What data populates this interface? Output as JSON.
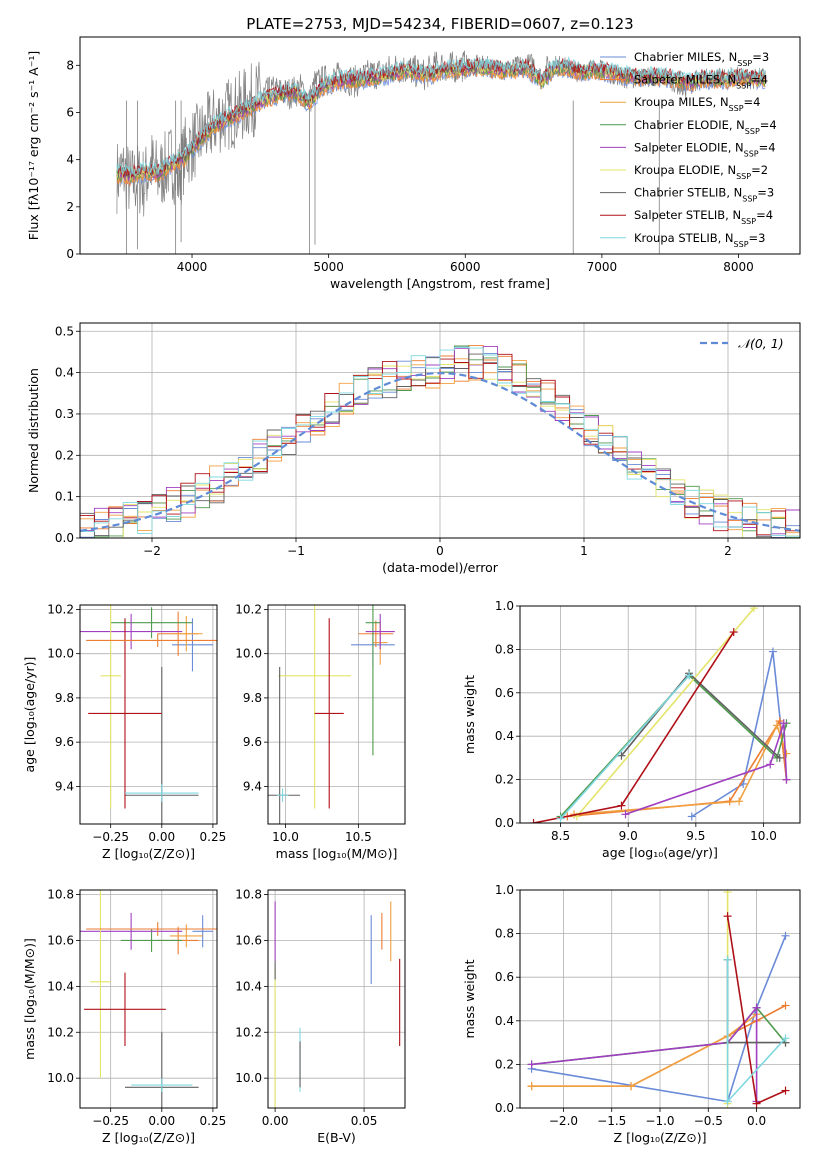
{
  "figure_title": "PLATE=2753, MJD=54234, FIBERID=0607, z=0.123",
  "series_colors": [
    "#6a8bd8",
    "#ee7d32",
    "#f0a040",
    "#4f9a4f",
    "#a040c0",
    "#e4e46a",
    "#606060",
    "#b01018",
    "#7fd8e0"
  ],
  "chart_data": [
    {
      "id": "spectrum",
      "type": "line",
      "title": "PLATE=2753, MJD=54234, FIBERID=0607, z=0.123",
      "xlabel": "wavelength [Angstrom, rest frame]",
      "ylabel": "Flux [fλ10⁻¹⁷ erg cm⁻² s⁻¹ A⁻¹]",
      "xlim": [
        3180,
        8450
      ],
      "ylim": [
        0,
        9.2
      ],
      "xticks": [
        4000,
        5000,
        6000,
        7000,
        8000
      ],
      "yticks": [
        0,
        2,
        4,
        6,
        8
      ],
      "grid": false,
      "legend_position": "right",
      "legend": [
        {
          "label": "Chabrier MILES, N",
          "sub": "SSP",
          "suffix": "=3"
        },
        {
          "label": "Salpeter MILES, N",
          "sub": "SSP",
          "suffix": "=4"
        },
        {
          "label": "Kroupa MILES, N",
          "sub": "SSP",
          "suffix": "=4"
        },
        {
          "label": "Chabrier ELODIE, N",
          "sub": "SSP",
          "suffix": "=4"
        },
        {
          "label": "Salpeter ELODIE, N",
          "sub": "SSP",
          "suffix": "=4"
        },
        {
          "label": "Kroupa ELODIE, N",
          "sub": "SSP",
          "suffix": "=2"
        },
        {
          "label": "Chabrier STELIB, N",
          "sub": "SSP",
          "suffix": "=3"
        },
        {
          "label": "Salpeter STELIB, N",
          "sub": "SSP",
          "suffix": "=4"
        },
        {
          "label": "Kroupa STELIB, N",
          "sub": "SSP",
          "suffix": "=3"
        }
      ],
      "observed_flux": {
        "x": [
          3450,
          3500,
          3550,
          3600,
          3650,
          3700,
          3750,
          3800,
          3850,
          3900,
          3950,
          4000,
          4100,
          4200,
          4300,
          4400,
          4500,
          4600,
          4700,
          4800,
          4861,
          4900,
          5000,
          5100,
          5200,
          5300,
          5400,
          5500,
          5600,
          5700,
          5800,
          5900,
          6000,
          6100,
          6200,
          6300,
          6400,
          6500,
          6563,
          6600,
          6700,
          6800,
          6900,
          7000,
          7100,
          7200,
          7300,
          7400,
          7500,
          7600,
          7700,
          7800,
          7900,
          8000,
          8100,
          8200
        ],
        "y": [
          3.3,
          3.5,
          3.0,
          3.2,
          3.0,
          3.8,
          3.3,
          3.6,
          4.0,
          3.2,
          4.3,
          4.6,
          5.2,
          5.8,
          6.0,
          6.4,
          6.7,
          6.9,
          6.8,
          7.0,
          6.5,
          7.2,
          7.4,
          7.5,
          7.3,
          7.6,
          7.7,
          7.9,
          7.8,
          7.6,
          8.0,
          7.9,
          8.0,
          8.0,
          7.9,
          7.8,
          8.0,
          8.1,
          7.4,
          8.0,
          8.0,
          7.7,
          7.9,
          7.8,
          7.6,
          7.4,
          7.5,
          7.5,
          7.4,
          7.0,
          7.4,
          7.5,
          7.4,
          7.6,
          7.4,
          7.5
        ]
      },
      "model_flux": {
        "x": [
          3450,
          3550,
          3650,
          3750,
          3850,
          3950,
          4050,
          4150,
          4250,
          4350,
          4450,
          4550,
          4650,
          4750,
          4861,
          4950,
          5050,
          5150,
          5250,
          5350,
          5450,
          5550,
          5650,
          5750,
          5850,
          5950,
          6050,
          6150,
          6250,
          6350,
          6450,
          6563,
          6650,
          6750,
          6850,
          6950,
          7050,
          7150,
          7250,
          7350,
          7450,
          7550,
          7650,
          7750,
          7850,
          7950,
          8050,
          8150,
          8200
        ],
        "y": [
          3.4,
          3.3,
          3.5,
          3.4,
          3.8,
          4.1,
          4.8,
          5.4,
          5.7,
          6.0,
          6.3,
          6.6,
          6.8,
          6.9,
          6.4,
          7.1,
          7.3,
          7.4,
          7.4,
          7.5,
          7.6,
          7.8,
          7.7,
          7.6,
          7.8,
          7.8,
          7.9,
          7.9,
          7.8,
          7.8,
          7.9,
          7.3,
          7.9,
          7.9,
          7.7,
          7.8,
          7.7,
          7.6,
          7.5,
          7.5,
          7.5,
          7.4,
          7.3,
          7.4,
          7.4,
          7.4,
          7.5,
          7.4,
          7.4
        ]
      }
    },
    {
      "id": "residuals",
      "type": "histogram",
      "xlabel": "(data-model)/error",
      "ylabel": "Normed distribution",
      "xlim": [
        -2.5,
        2.5
      ],
      "ylim": [
        0,
        0.52
      ],
      "xticks": [
        -2,
        -1,
        0,
        1,
        2
      ],
      "yticks": [
        0.0,
        0.1,
        0.2,
        0.3,
        0.4,
        0.5
      ],
      "grid": true,
      "legend_position": "top-right",
      "reference_label": "𝒩(0, 1)",
      "bin_width": 0.1,
      "bin_start": -2.5,
      "base_density": [
        0.021,
        0.028,
        0.036,
        0.044,
        0.054,
        0.065,
        0.079,
        0.094,
        0.111,
        0.13,
        0.15,
        0.172,
        0.195,
        0.219,
        0.244,
        0.268,
        0.292,
        0.315,
        0.336,
        0.355,
        0.37,
        0.383,
        0.391,
        0.397,
        0.4,
        0.41,
        0.42,
        0.425,
        0.418,
        0.405,
        0.39,
        0.37,
        0.345,
        0.318,
        0.29,
        0.261,
        0.233,
        0.205,
        0.178,
        0.153,
        0.129,
        0.108,
        0.09,
        0.075,
        0.062,
        0.052,
        0.043,
        0.036,
        0.031,
        0.027
      ]
    },
    {
      "id": "age-vs-Z",
      "type": "errorbar",
      "xlabel": "Z [log₁₀(Z/Z⊙)]",
      "ylabel": "age  [log₁₀(age/yr)]",
      "xlim": [
        -0.4,
        0.27
      ],
      "ylim": [
        9.23,
        10.22
      ],
      "xticks": [
        -0.25,
        0.0,
        0.25
      ],
      "yticks": [
        9.4,
        9.6,
        9.8,
        10.0,
        10.2
      ],
      "grid": true,
      "points": [
        {
          "s": 0,
          "x": 0.15,
          "y": 10.04,
          "xe": 0.1,
          "ye": 0.12
        },
        {
          "s": 1,
          "x": 0.08,
          "y": 10.09,
          "xe": 0.1,
          "ye": 0.1
        },
        {
          "s": 2,
          "x": 0.12,
          "y": 10.09,
          "xe": 0.08,
          "ye": 0.08
        },
        {
          "s": 3,
          "x": -0.05,
          "y": 10.14,
          "xe": 0.2,
          "ye": 0.07
        },
        {
          "s": 4,
          "x": -0.15,
          "y": 10.1,
          "xe": 0.25,
          "ye": 0.08
        },
        {
          "s": 5,
          "x": -0.25,
          "y": 9.9,
          "xe": 0.05,
          "ye": 0.6
        },
        {
          "s": 6,
          "x": 0.0,
          "y": 9.36,
          "xe": 0.18,
          "ye": 0.58
        },
        {
          "s": 7,
          "x": -0.18,
          "y": 9.73,
          "xe": 0.18,
          "ye": 0.43
        },
        {
          "s": 8,
          "x": 0.0,
          "y": 9.37,
          "xe": 0.18,
          "ye": 0.04
        },
        {
          "s": 1,
          "x": -0.02,
          "y": 10.06,
          "xe": 0.35,
          "ye": 0.03
        }
      ]
    },
    {
      "id": "age-vs-mass",
      "type": "errorbar",
      "xlabel": "mass [log₁₀(M/M⊙)]",
      "ylabel": "",
      "xlim": [
        9.88,
        10.82
      ],
      "ylim": [
        9.23,
        10.22
      ],
      "xticks": [
        10.0,
        10.5
      ],
      "yticks": [
        9.4,
        9.6,
        9.8,
        10.0,
        10.2
      ],
      "grid": true,
      "points": [
        {
          "s": 0,
          "x": 10.6,
          "y": 10.04,
          "xe": 0.15,
          "ye": 0.1
        },
        {
          "s": 1,
          "x": 10.62,
          "y": 10.09,
          "xe": 0.12,
          "ye": 0.06
        },
        {
          "s": 2,
          "x": 10.65,
          "y": 10.05,
          "xe": 0.05,
          "ye": 0.1
        },
        {
          "s": 3,
          "x": 10.6,
          "y": 10.14,
          "xe": 0.05,
          "ye": 0.6
        },
        {
          "s": 4,
          "x": 10.65,
          "y": 10.1,
          "xe": 0.1,
          "ye": 0.08
        },
        {
          "s": 5,
          "x": 10.2,
          "y": 9.9,
          "xe": 0.25,
          "ye": 0.6
        },
        {
          "s": 6,
          "x": 9.96,
          "y": 9.36,
          "xe": 0.14,
          "ye": 0.58
        },
        {
          "s": 7,
          "x": 10.3,
          "y": 9.73,
          "xe": 0.1,
          "ye": 0.43
        },
        {
          "s": 8,
          "x": 9.98,
          "y": 9.36,
          "xe": 0.04,
          "ye": 0.03
        }
      ]
    },
    {
      "id": "mass-weight-vs-age",
      "type": "line",
      "xlabel": "age  [log₁₀(age/yr)]",
      "ylabel": "mass weight",
      "xlim": [
        8.2,
        10.27
      ],
      "ylim": [
        0,
        1
      ],
      "xticks": [
        8.5,
        9.0,
        9.5,
        10.0
      ],
      "yticks": [
        0.0,
        0.2,
        0.4,
        0.6,
        0.8,
        1.0
      ],
      "grid": true,
      "series": [
        {
          "s": 0,
          "x": [
            9.47,
            9.85,
            10.07,
            10.17
          ],
          "y": [
            0.03,
            0.18,
            0.79,
            0.2
          ]
        },
        {
          "s": 1,
          "x": [
            8.55,
            9.75,
            10.12,
            10.17
          ],
          "y": [
            0.03,
            0.1,
            0.47,
            0.2
          ]
        },
        {
          "s": 2,
          "x": [
            8.6,
            9.82,
            10.1,
            10.17
          ],
          "y": [
            0.04,
            0.1,
            0.45,
            0.32
          ]
        },
        {
          "s": 3,
          "x": [
            8.5,
            9.45,
            10.1,
            10.17
          ],
          "y": [
            0.03,
            0.68,
            0.3,
            0.46
          ]
        },
        {
          "s": 4,
          "x": [
            8.98,
            10.05,
            10.15,
            10.17
          ],
          "y": [
            0.04,
            0.27,
            0.46,
            0.2
          ]
        },
        {
          "s": 5,
          "x": [
            8.62,
            9.93
          ],
          "y": [
            0.03,
            0.99
          ]
        },
        {
          "s": 6,
          "x": [
            8.95,
            9.45,
            10.12
          ],
          "y": [
            0.31,
            0.69,
            0.3
          ]
        },
        {
          "s": 7,
          "x": [
            8.3,
            8.95,
            9.78
          ],
          "y": [
            0.0,
            0.08,
            0.88
          ]
        },
        {
          "s": 8,
          "x": [
            8.5,
            9.45
          ],
          "y": [
            0.02,
            0.68
          ]
        }
      ]
    },
    {
      "id": "mass-vs-Z",
      "type": "errorbar",
      "xlabel": "Z [log₁₀(Z/Z⊙)]",
      "ylabel": "mass [log₁₀(M/M⊙)]",
      "xlim": [
        -0.4,
        0.27
      ],
      "ylim": [
        9.87,
        10.82
      ],
      "xticks": [
        -0.25,
        0.0,
        0.25
      ],
      "yticks": [
        10.0,
        10.2,
        10.4,
        10.6,
        10.8
      ],
      "grid": true,
      "points": [
        {
          "s": 0,
          "x": 0.2,
          "y": 10.64,
          "xe": 0.05,
          "ye": 0.07
        },
        {
          "s": 1,
          "x": 0.08,
          "y": 10.6,
          "xe": 0.1,
          "ye": 0.06
        },
        {
          "s": 2,
          "x": 0.12,
          "y": 10.62,
          "xe": 0.08,
          "ye": 0.05
        },
        {
          "s": 3,
          "x": -0.05,
          "y": 10.6,
          "xe": 0.15,
          "ye": 0.05
        },
        {
          "s": 4,
          "x": -0.15,
          "y": 10.64,
          "xe": 0.25,
          "ye": 0.08
        },
        {
          "s": 5,
          "x": -0.3,
          "y": 10.42,
          "xe": 0.05,
          "ye": 0.42
        },
        {
          "s": 6,
          "x": 0.0,
          "y": 9.96,
          "xe": 0.18,
          "ye": 0.24
        },
        {
          "s": 7,
          "x": -0.18,
          "y": 10.3,
          "xe": 0.2,
          "ye": 0.16
        },
        {
          "s": 8,
          "x": 0.0,
          "y": 9.97,
          "xe": 0.15,
          "ye": 0.03
        },
        {
          "s": 1,
          "x": -0.02,
          "y": 10.65,
          "xe": 0.35,
          "ye": 0.03
        }
      ]
    },
    {
      "id": "mass-vs-EBV",
      "type": "errorbar",
      "xlabel": "E(B-V)",
      "ylabel": "",
      "xlim": [
        -0.004,
        0.073
      ],
      "ylim": [
        9.87,
        10.82
      ],
      "xticks": [
        0.0,
        0.05
      ],
      "yticks": [
        10.0,
        10.2,
        10.4,
        10.6,
        10.8
      ],
      "grid": true,
      "points": [
        {
          "s": 0,
          "x": 0.054,
          "y": 10.56,
          "xe": 0.0,
          "ye": 0.15
        },
        {
          "s": 1,
          "x": 0.06,
          "y": 10.64,
          "xe": 0.0,
          "ye": 0.08
        },
        {
          "s": 2,
          "x": 0.065,
          "y": 10.64,
          "xe": 0.0,
          "ye": 0.13
        },
        {
          "s": 4,
          "x": 0.0,
          "y": 10.64,
          "xe": 0.0,
          "ye": 0.13
        },
        {
          "s": 5,
          "x": 0.0,
          "y": 10.1,
          "xe": 0.0,
          "ye": 0.38
        },
        {
          "s": 6,
          "x": 0.0,
          "y": 10.47,
          "xe": 0.0,
          "ye": 0.04
        },
        {
          "s": 7,
          "x": 0.07,
          "y": 10.33,
          "xe": 0.0,
          "ye": 0.19
        },
        {
          "s": 8,
          "x": 0.014,
          "y": 10.08,
          "xe": 0.0,
          "ye": 0.14
        },
        {
          "s": 6,
          "x": 0.014,
          "y": 10.06,
          "xe": 0.0,
          "ye": 0.1
        }
      ]
    },
    {
      "id": "mass-weight-vs-Z",
      "type": "line",
      "xlabel": "Z [log₁₀(Z/Z⊙)]",
      "ylabel": "mass weight",
      "xlim": [
        -2.45,
        0.45
      ],
      "ylim": [
        0,
        1
      ],
      "xticks": [
        -2.0,
        -1.5,
        -1.0,
        -0.5,
        0.0
      ],
      "yticks": [
        0.0,
        0.2,
        0.4,
        0.6,
        0.8,
        1.0
      ],
      "grid": true,
      "series": [
        {
          "s": 0,
          "x": [
            -2.33,
            -0.3,
            0.0,
            0.3
          ],
          "y": [
            0.18,
            0.03,
            0.46,
            0.79
          ]
        },
        {
          "s": 1,
          "x": [
            -2.33,
            -1.3,
            0.0,
            0.3
          ],
          "y": [
            0.1,
            0.1,
            0.4,
            0.47
          ]
        },
        {
          "s": 2,
          "x": [
            -2.33,
            -1.3,
            -0.3,
            0.0
          ],
          "y": [
            0.1,
            0.1,
            0.33,
            0.43
          ]
        },
        {
          "s": 3,
          "x": [
            -2.33,
            -0.3,
            0.0,
            0.3
          ],
          "y": [
            0.2,
            0.3,
            0.46,
            0.3
          ]
        },
        {
          "s": 4,
          "x": [
            -2.33,
            -0.3,
            0.0,
            0.0
          ],
          "y": [
            0.2,
            0.3,
            0.46,
            0.03
          ]
        },
        {
          "s": 5,
          "x": [
            -0.3,
            -0.3
          ],
          "y": [
            0.02,
            0.99
          ]
        },
        {
          "s": 6,
          "x": [
            -0.3,
            -0.3,
            0.3
          ],
          "y": [
            0.68,
            0.3,
            0.3
          ]
        },
        {
          "s": 7,
          "x": [
            -0.3,
            0.0,
            0.3
          ],
          "y": [
            0.88,
            0.02,
            0.08
          ]
        },
        {
          "s": 8,
          "x": [
            -0.3,
            -0.3,
            0.3
          ],
          "y": [
            0.68,
            0.03,
            0.32
          ]
        }
      ]
    }
  ]
}
